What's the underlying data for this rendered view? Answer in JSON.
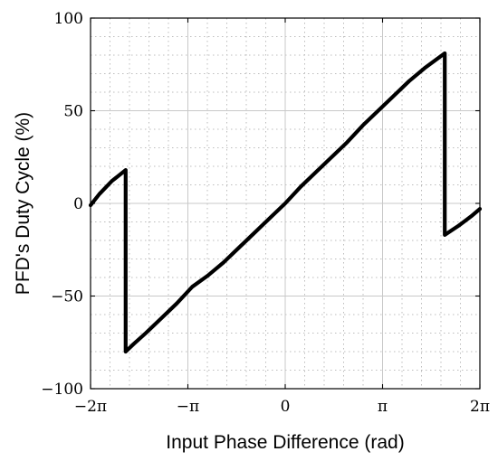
{
  "chart_data": {
    "type": "line",
    "title": "",
    "xlabel": "Input Phase Difference (rad)",
    "ylabel": "PFD's Duty Cycle (%)",
    "xlim": [
      -6.2832,
      6.2832
    ],
    "ylim": [
      -100,
      100
    ],
    "x_ticks": [
      {
        "value": -6.2832,
        "label": "−2π"
      },
      {
        "value": -3.1416,
        "label": "−π"
      },
      {
        "value": 0,
        "label": "0"
      },
      {
        "value": 3.1416,
        "label": "π"
      },
      {
        "value": 6.2832,
        "label": "2π"
      }
    ],
    "y_ticks": [
      {
        "value": -100,
        "label": "−100"
      },
      {
        "value": -50,
        "label": "−50"
      },
      {
        "value": 0,
        "label": "0"
      },
      {
        "value": 50,
        "label": "50"
      },
      {
        "value": 100,
        "label": "100"
      }
    ],
    "grid": true,
    "minor_grid": true,
    "series": [
      {
        "x": [
          -6.2832,
          -6.0,
          -5.6,
          -5.15,
          -5.15,
          -4.9,
          -4.5,
          -4.0,
          -3.5,
          -3.0,
          -2.5,
          -2.0,
          -1.5,
          -1.0,
          -0.5,
          0.0,
          0.5,
          1.0,
          1.5,
          2.0,
          2.5,
          3.0,
          3.5,
          4.0,
          4.5,
          5.15,
          5.15,
          5.6,
          6.0,
          6.2832
        ],
        "y": [
          -1,
          5,
          12,
          18,
          -80,
          -76,
          -70,
          -62,
          -54,
          -45,
          -39,
          -32,
          -24,
          -16,
          -8,
          0,
          9,
          17,
          25,
          33,
          42,
          50,
          58,
          66,
          73,
          81,
          -17,
          -12,
          -7,
          -3
        ]
      }
    ]
  }
}
